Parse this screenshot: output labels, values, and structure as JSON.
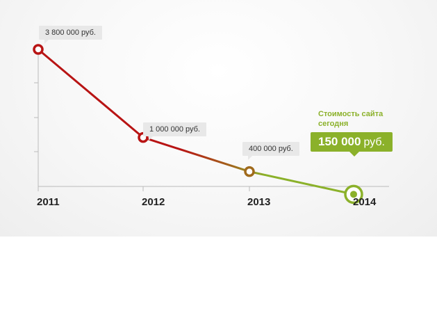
{
  "chart_data": {
    "type": "line",
    "x": [
      "2011",
      "2012",
      "2013",
      "2014"
    ],
    "series": [
      {
        "values": [
          3800000,
          1000000,
          400000,
          150000
        ]
      }
    ],
    "point_labels": [
      "3 800 000 руб.",
      "1 000 000 руб.",
      "400 000 руб.",
      "150 000 руб."
    ],
    "highlight": {
      "caption_line1": "Стоимость сайта",
      "caption_line2": "сегодня",
      "value": "150 000",
      "unit": "руб."
    },
    "colors": {
      "start": "#b81414",
      "mid": "#a06a1c",
      "end": "#8bb12a",
      "axis": "#bbbbbb"
    },
    "grid": false,
    "legend": "none"
  }
}
